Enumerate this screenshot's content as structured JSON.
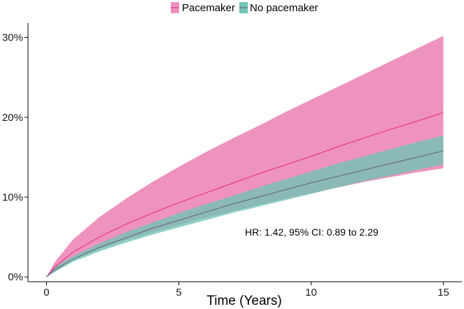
{
  "chart_data": {
    "type": "area",
    "title": "",
    "xlabel": "Time (Years)",
    "ylabel": "",
    "xlim": [
      -0.7,
      15.7
    ],
    "ylim": [
      -0.6,
      31.8
    ],
    "x_ticks": [
      0,
      5,
      10,
      15
    ],
    "y_ticks": [
      0,
      10,
      20,
      30
    ],
    "y_tick_labels": [
      "0%",
      "10%",
      "20%",
      "30%"
    ],
    "grid": false,
    "legend": {
      "position": "top-center"
    },
    "annotation": {
      "text": "HR: 1.42, 95% CI: 0.89 to 2.29",
      "x": 7.5,
      "y": 5.2
    },
    "series": [
      {
        "name": "Pacemaker",
        "color": "#e53a8f",
        "fill_color": "#ee93bd",
        "x": [
          0,
          0.3,
          1,
          2,
          3,
          4,
          5,
          6,
          7,
          8,
          9,
          10,
          11,
          12,
          13,
          14,
          15
        ],
        "y": [
          0,
          1.2,
          3.1,
          5.0,
          6.6,
          8.0,
          9.3,
          10.5,
          11.7,
          12.9,
          14.0,
          15.1,
          16.3,
          17.4,
          18.5,
          19.5,
          20.6
        ],
        "lower": [
          0,
          0.6,
          2.2,
          3.5,
          4.6,
          5.6,
          6.5,
          7.4,
          8.2,
          9.0,
          9.8,
          10.5,
          11.2,
          11.9,
          12.5,
          13.1,
          13.6
        ],
        "upper": [
          0,
          1.8,
          4.7,
          7.5,
          9.8,
          11.9,
          13.8,
          15.6,
          17.3,
          18.9,
          20.6,
          22.2,
          23.8,
          25.4,
          27.0,
          28.6,
          30.2
        ]
      },
      {
        "name": "No pacemaker",
        "color": "#6b6b88",
        "fill_color": "#6fc4b4",
        "x": [
          0,
          0.3,
          1,
          2,
          3,
          4,
          5,
          6,
          7,
          8,
          9,
          10,
          11,
          12,
          13,
          14,
          15
        ],
        "y": [
          0,
          0.9,
          2.2,
          3.7,
          4.9,
          6.1,
          7.1,
          8.1,
          9.1,
          10.0,
          10.9,
          11.8,
          12.6,
          13.4,
          14.2,
          15.0,
          15.8
        ],
        "lower": [
          0,
          0.6,
          1.9,
          3.2,
          4.3,
          5.3,
          6.2,
          7.1,
          8.0,
          8.8,
          9.6,
          10.4,
          11.2,
          12.0,
          12.7,
          13.4,
          14.1
        ],
        "upper": [
          0,
          1.2,
          2.6,
          4.2,
          5.6,
          6.8,
          8.0,
          9.1,
          10.1,
          11.2,
          12.2,
          13.2,
          14.2,
          15.1,
          16.0,
          16.9,
          17.7
        ]
      }
    ]
  }
}
